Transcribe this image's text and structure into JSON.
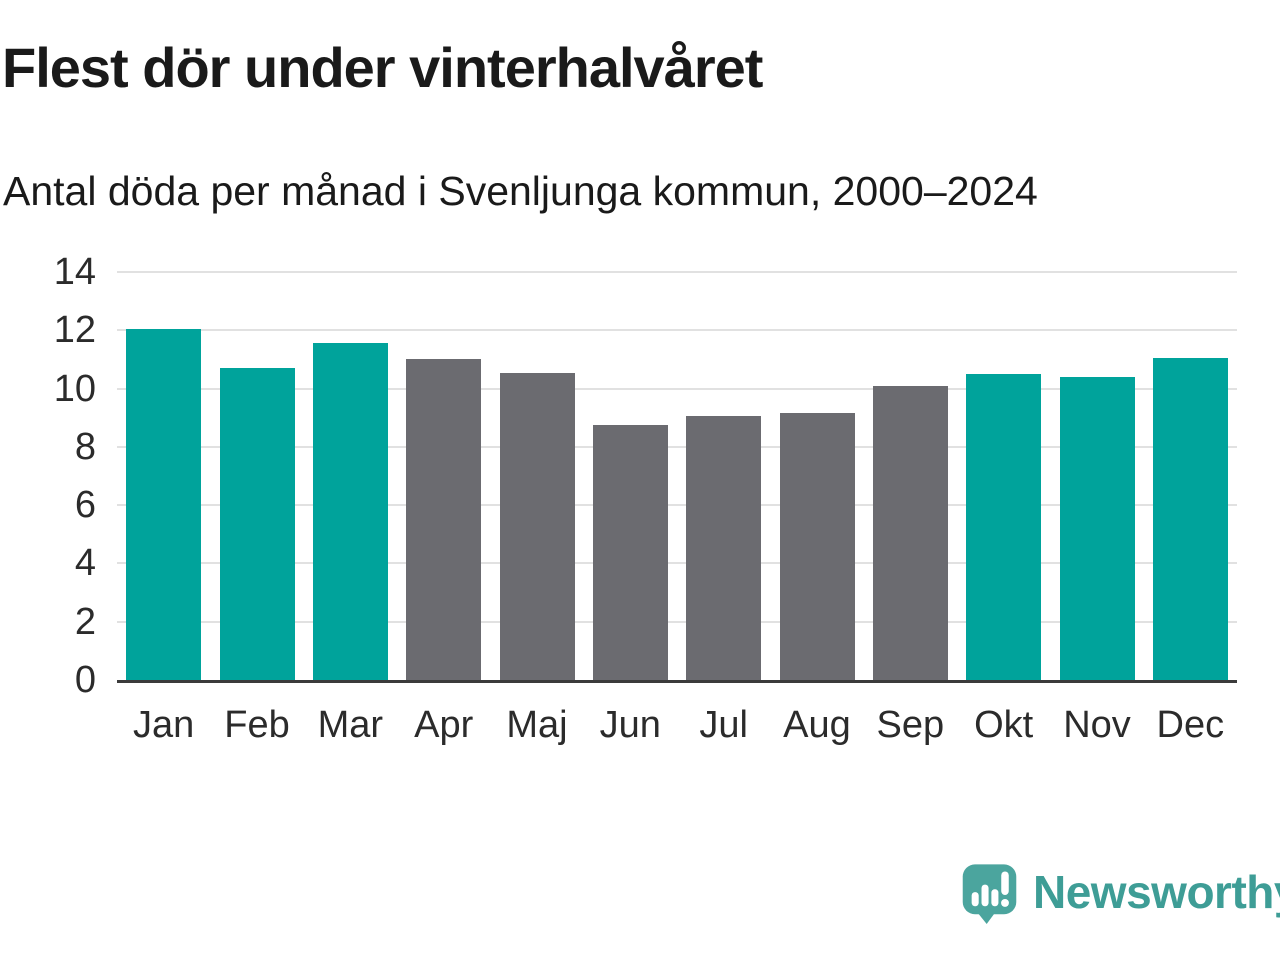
{
  "header": {
    "title": "Flest dör under vinterhalvåret",
    "subtitle": "Antal döda per månad i Svenljunga kommun, 2000–2024"
  },
  "chart_data": {
    "type": "bar",
    "title": "Flest dör under vinterhalvåret",
    "subtitle": "Antal döda per månad i Svenljunga kommun, 2000–2024",
    "categories": [
      "Jan",
      "Feb",
      "Mar",
      "Apr",
      "Maj",
      "Jun",
      "Jul",
      "Aug",
      "Sep",
      "Okt",
      "Nov",
      "Dec"
    ],
    "values": [
      12.05,
      10.7,
      11.55,
      11.0,
      10.55,
      8.75,
      9.05,
      9.15,
      10.1,
      10.5,
      10.4,
      11.05
    ],
    "bar_seasons": [
      "winter",
      "winter",
      "winter",
      "summer",
      "summer",
      "summer",
      "summer",
      "summer",
      "summer",
      "winter",
      "winter",
      "winter"
    ],
    "palette": {
      "winter": "#00a39b",
      "summer": "#6b6b70"
    },
    "xlabel": "",
    "ylabel": "",
    "ylim": [
      0,
      14
    ],
    "yticks": [
      0,
      2,
      4,
      6,
      8,
      10,
      12,
      14
    ],
    "grid": "horizontal",
    "legend": "none"
  },
  "footer": {
    "brand": "Newsworthy",
    "logo_icon": "speech-bubble-bar-chart-exclamation",
    "brand_text_color": "#3e9d96",
    "logo_icon_color": "#4ba59e"
  },
  "colors": {
    "background": "#ffffff",
    "title_text": "#1a1a1a",
    "axis_text": "#2b2b2b",
    "gridline": "#e1e1e1",
    "axis_line": "#3b3b3b",
    "winter_bar": "#00a39b",
    "summer_bar": "#6b6b70"
  }
}
